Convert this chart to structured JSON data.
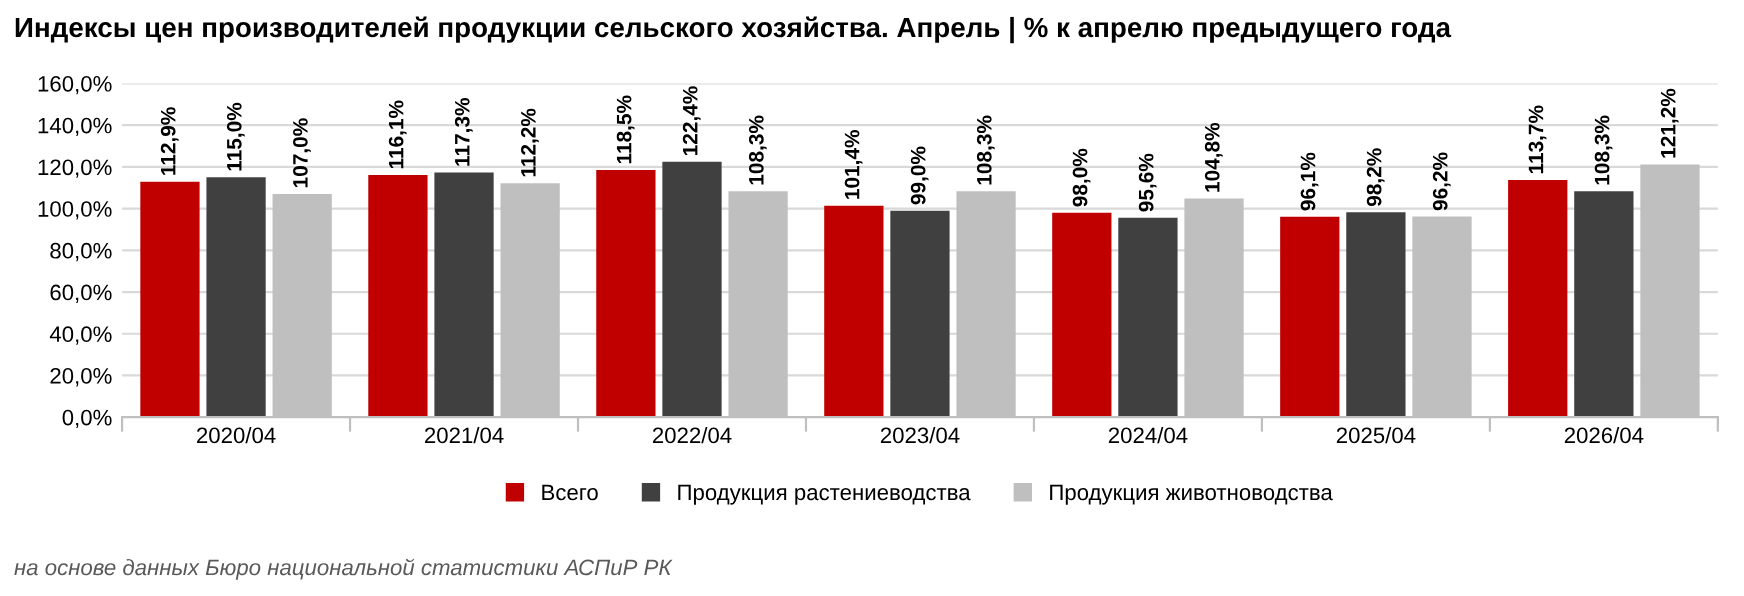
{
  "chart_data": {
    "type": "bar",
    "title": "Индексы цен производителей продукции сельского хозяйства. Апрель | % к апрелю предыдущего года",
    "categories": [
      "2020/04",
      "2021/04",
      "2022/04",
      "2023/04",
      "2024/04",
      "2025/04",
      "2026/04"
    ],
    "series": [
      {
        "name": "Всего",
        "color": "#c00000",
        "values": [
          112.9,
          116.1,
          118.5,
          101.4,
          98.0,
          96.1,
          113.7
        ],
        "value_labels": [
          "112,9%",
          "116,1%",
          "118,5%",
          "101,4%",
          "98,0%",
          "96,1%",
          "113,7%"
        ]
      },
      {
        "name": "Продукция растениеводства",
        "color": "#404040",
        "values": [
          115.0,
          117.3,
          122.4,
          99.0,
          95.6,
          98.2,
          108.3
        ],
        "value_labels": [
          "115,0%",
          "117,3%",
          "122,4%",
          "99,0%",
          "95,6%",
          "98,2%",
          "108,3%"
        ]
      },
      {
        "name": "Продукция животноводства",
        "color": "#bfbfbf",
        "values": [
          107.0,
          112.2,
          108.3,
          108.3,
          104.8,
          96.2,
          121.2
        ],
        "value_labels": [
          "107,0%",
          "112,2%",
          "108,3%",
          "108,3%",
          "104,8%",
          "96,2%",
          "121,2%"
        ]
      }
    ],
    "ylim": [
      0,
      160
    ],
    "yticks": [
      {
        "value": 0,
        "label": "0,0%"
      },
      {
        "value": 20,
        "label": "20,0%"
      },
      {
        "value": 40,
        "label": "40,0%"
      },
      {
        "value": 60,
        "label": "60,0%"
      },
      {
        "value": 80,
        "label": "80,0%"
      },
      {
        "value": 100,
        "label": "100,0%"
      },
      {
        "value": 120,
        "label": "120,0%"
      },
      {
        "value": 140,
        "label": "140,0%"
      },
      {
        "value": 160,
        "label": "160,0%"
      }
    ],
    "grid": "y",
    "legend": "bottom",
    "annotations": [
      "на основе данных Бюро национальной статистики АСПиР РК"
    ]
  }
}
